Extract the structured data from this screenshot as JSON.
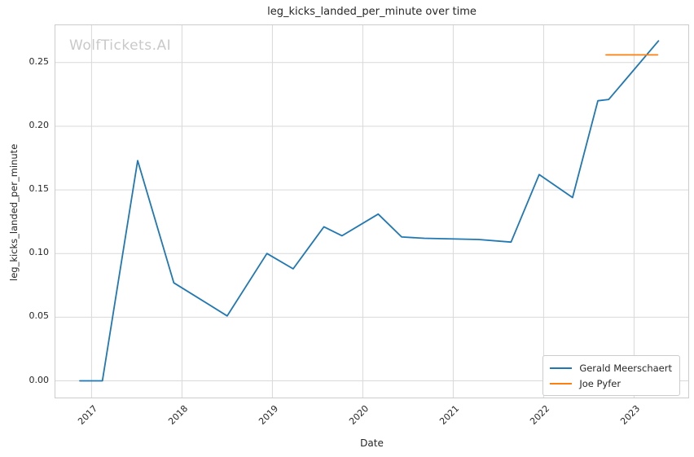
{
  "chart_data": {
    "type": "line",
    "title": "leg_kicks_landed_per_minute over time",
    "xlabel": "Date",
    "ylabel": "leg_kicks_landed_per_minute",
    "watermark": "WolfTickets.AI",
    "grid": true,
    "legend_position": "lower right",
    "xlim": [
      2016.6,
      2023.6
    ],
    "ylim": [
      -0.0131,
      0.2793
    ],
    "x_ticks": {
      "values": [
        2017,
        2018,
        2019,
        2020,
        2021,
        2022,
        2023
      ],
      "labels": [
        "2017",
        "2018",
        "2019",
        "2020",
        "2021",
        "2022",
        "2023"
      ]
    },
    "y_ticks": {
      "values": [
        0.0,
        0.05,
        0.1,
        0.15,
        0.2,
        0.25
      ],
      "labels": [
        "0.00",
        "0.05",
        "0.10",
        "0.15",
        "0.20",
        "0.25"
      ]
    },
    "series": [
      {
        "name": "Gerald Meerschaert",
        "color": "#1f77b4",
        "x": [
          2016.87,
          2017.12,
          2017.51,
          2017.91,
          2018.5,
          2018.94,
          2019.23,
          2019.57,
          2019.77,
          2020.17,
          2020.43,
          2020.68,
          2021.28,
          2021.64,
          2021.95,
          2022.32,
          2022.6,
          2022.72,
          2023.27
        ],
        "y": [
          0.0,
          0.0,
          0.173,
          0.077,
          0.051,
          0.1,
          0.088,
          0.121,
          0.114,
          0.131,
          0.113,
          0.112,
          0.111,
          0.109,
          0.162,
          0.144,
          0.22,
          0.221,
          0.267
        ]
      },
      {
        "name": "Joe Pyfer",
        "color": "#ff7f0e",
        "x": [
          2022.69,
          2023.26
        ],
        "y": [
          0.256,
          0.256
        ]
      }
    ],
    "colors": {
      "grid": "#d9d9d9",
      "axis_border": "#cccccc",
      "text": "#262626",
      "watermark": "#c9c9c9"
    }
  }
}
